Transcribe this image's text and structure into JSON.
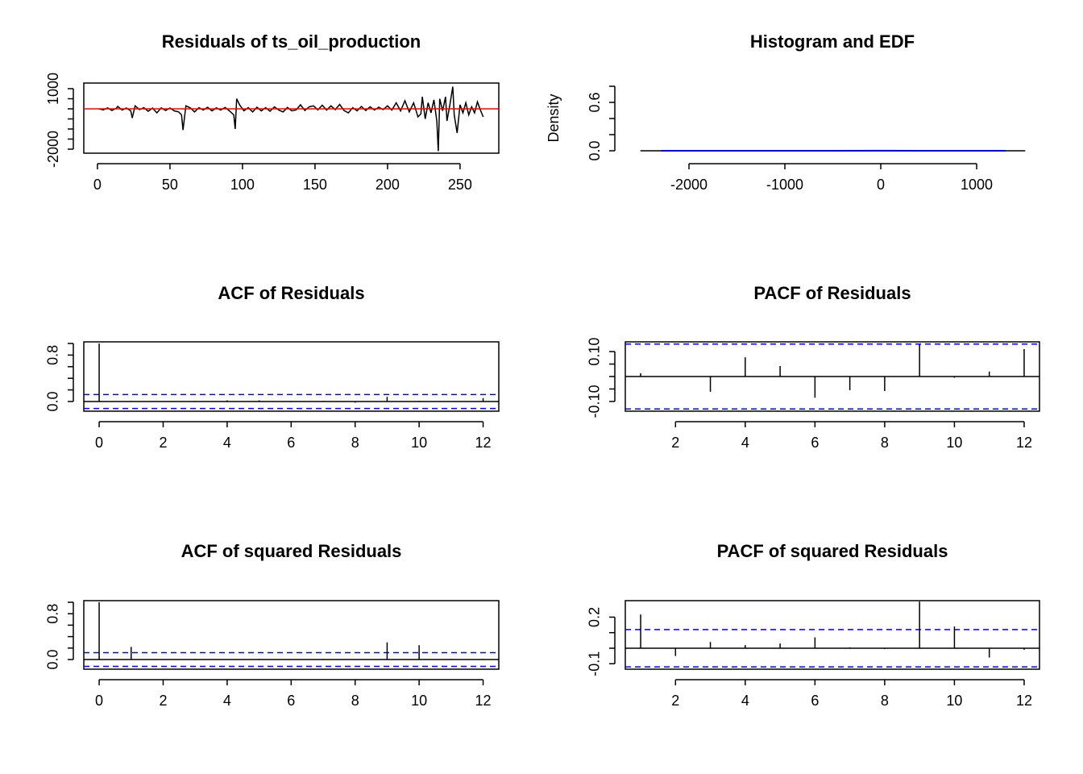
{
  "chart_data": [
    {
      "type": "line",
      "title": "Residuals of ts_oil_production",
      "box": true,
      "x": [
        1,
        4,
        7,
        10,
        13,
        14,
        17,
        20,
        23,
        24,
        26,
        29,
        32,
        35,
        38,
        41,
        44,
        47,
        50,
        53,
        56,
        58,
        59,
        61,
        64,
        67,
        70,
        73,
        76,
        79,
        82,
        85,
        88,
        91,
        94,
        95,
        96,
        98,
        101,
        104,
        107,
        110,
        113,
        116,
        119,
        122,
        125,
        128,
        131,
        134,
        137,
        140,
        143,
        146,
        149,
        152,
        155,
        158,
        161,
        164,
        167,
        170,
        173,
        176,
        179,
        182,
        185,
        188,
        191,
        194,
        197,
        200,
        203,
        206,
        209,
        212,
        215,
        218,
        221,
        223,
        224,
        226,
        228,
        230,
        232,
        234,
        235,
        236,
        238,
        240,
        241,
        243,
        245,
        246,
        248,
        250,
        252,
        254,
        256,
        258,
        260,
        262,
        264,
        266
      ],
      "values": [
        0,
        -50,
        50,
        -80,
        30,
        120,
        -60,
        40,
        -100,
        -450,
        150,
        -40,
        60,
        -120,
        40,
        -200,
        50,
        -80,
        40,
        -100,
        -150,
        -300,
        -1050,
        150,
        50,
        -150,
        60,
        -60,
        80,
        -100,
        50,
        -60,
        70,
        -100,
        -300,
        -1000,
        500,
        200,
        -100,
        60,
        -150,
        80,
        -100,
        60,
        -120,
        100,
        -60,
        -150,
        70,
        -100,
        -50,
        200,
        -80,
        100,
        150,
        -50,
        180,
        -60,
        150,
        -40,
        220,
        -80,
        -200,
        60,
        -100,
        120,
        -80,
        100,
        -60,
        80,
        -40,
        150,
        -60,
        300,
        -100,
        400,
        -150,
        300,
        -400,
        -250,
        600,
        -500,
        300,
        -200,
        450,
        -600,
        -2100,
        500,
        -100,
        600,
        -600,
        200,
        1100,
        -300,
        -1200,
        200,
        -200,
        300,
        -300,
        100,
        -200,
        350,
        -50,
        -400
      ],
      "color": "#000000",
      "hline": 0,
      "hline_color": "#ff0000",
      "xlim": [
        -9.4,
        276.7
      ],
      "xticks": [
        0,
        50,
        100,
        150,
        200,
        250
      ],
      "ylim": [
        -2200,
        1280
      ],
      "yticks": [
        -2000,
        1000
      ],
      "yminor": [
        -1500,
        -1000,
        -500,
        0,
        500
      ]
    },
    {
      "type": "histogram",
      "title": "Histogram and EDF",
      "ylabel": "Density",
      "box": false,
      "bins": [
        -2500,
        -2000,
        -1500,
        -1000,
        -500,
        0,
        500,
        1000,
        1500
      ],
      "values": [
        7.5e-06,
        0,
        1.5e-05,
        2.25e-05,
        0.0009,
        0.00101,
        3e-05,
        7.5e-06
      ],
      "color": "#000000",
      "density": {
        "x": [
          -2290,
          -1500,
          -1000,
          -500,
          0,
          500,
          1000,
          1300
        ],
        "values": [
          2e-06,
          1e-05,
          2e-05,
          0.0002,
          0.0012,
          0.0002,
          1e-05,
          2e-06
        ],
        "color": "#0000ff"
      },
      "xlim": [
        -2664,
        1655
      ],
      "xticks": [
        -2000,
        -1000,
        0,
        1000
      ],
      "ylim": [
        -0.03,
        0.84
      ],
      "yticks": [
        {
          "value": 0,
          "label": "0.0"
        },
        0.6
      ],
      "yminor": [
        0.2,
        0.4,
        0.8
      ]
    },
    {
      "type": "acf",
      "title": "ACF of Residuals",
      "box": true,
      "x": [
        0,
        1,
        2,
        3,
        4,
        5,
        6,
        7,
        8,
        9,
        10,
        11,
        12
      ],
      "values": [
        1,
        0.01,
        0,
        -0.01,
        0.02,
        0.02,
        -0.01,
        0.01,
        -0.02,
        0.08,
        0.01,
        0,
        0.06
      ],
      "color": "#000000",
      "hline": 0,
      "ci_upper": 0.12,
      "ci_lower": -0.12,
      "ci_color": "#0000ff",
      "xlim": [
        -0.48,
        12.49
      ],
      "xticks": [
        0,
        2,
        4,
        6,
        8,
        10,
        12
      ],
      "ylim": [
        -0.167,
        1.028
      ],
      "yticks": [
        {
          "value": 0,
          "label": "0.0"
        },
        0.8
      ],
      "yminor": [
        0.2,
        0.4,
        0.6,
        1
      ]
    },
    {
      "type": "acf",
      "title": "PACF of Residuals",
      "box": true,
      "x": [
        1,
        2,
        3,
        4,
        5,
        6,
        7,
        8,
        9,
        10,
        11,
        12
      ],
      "values": [
        0.013,
        0,
        -0.061,
        0.077,
        0.042,
        -0.085,
        -0.055,
        -0.058,
        0.13,
        -0.005,
        0.02,
        0.11
      ],
      "color": "#000000",
      "hline": 0,
      "ci_upper": 0.13,
      "ci_lower": -0.13,
      "ci_color": "#0000ff",
      "xlim": [
        0.56,
        12.44
      ],
      "xticks": [
        2,
        4,
        6,
        8,
        10,
        12
      ],
      "ylim": [
        -0.139,
        0.139
      ],
      "yticks": [
        {
          "value": -0.1,
          "label": "-0.10"
        },
        {
          "value": 0.1,
          "label": "0.10"
        }
      ],
      "yminor": [
        -0.05,
        0,
        0.05
      ]
    },
    {
      "type": "acf",
      "title": "ACF of squared Residuals",
      "box": true,
      "x": [
        0,
        1,
        2,
        3,
        4,
        5,
        6,
        7,
        8,
        9,
        10,
        11,
        12
      ],
      "values": [
        1,
        0.22,
        0,
        -0.01,
        0,
        0.01,
        0,
        -0.01,
        0,
        0.3,
        0.25,
        0.01,
        0.01
      ],
      "color": "#000000",
      "hline": 0,
      "ci_upper": 0.12,
      "ci_lower": -0.12,
      "ci_color": "#0000ff",
      "xlim": [
        -0.48,
        12.49
      ],
      "xticks": [
        0,
        2,
        4,
        6,
        8,
        10,
        12
      ],
      "ylim": [
        -0.169,
        1.028
      ],
      "yticks": [
        {
          "value": 0,
          "label": "0.0"
        },
        0.8
      ],
      "yminor": [
        0.2,
        0.4,
        0.6,
        1
      ]
    },
    {
      "type": "acf",
      "title": "PACF of squared Residuals",
      "box": true,
      "x": [
        1,
        2,
        3,
        4,
        5,
        6,
        7,
        8,
        9,
        10,
        11,
        12
      ],
      "values": [
        0.217,
        -0.05,
        0.04,
        0.02,
        0.03,
        0.07,
        0.005,
        -0.005,
        0.3,
        0.14,
        -0.06,
        -0.01
      ],
      "color": "#000000",
      "hline": 0,
      "ci_upper": 0.12,
      "ci_lower": -0.12,
      "ci_color": "#0000ff",
      "xlim": [
        0.56,
        12.44
      ],
      "xticks": [
        2,
        4,
        6,
        8,
        10,
        12
      ],
      "ylim": [
        -0.135,
        0.306
      ],
      "yticks": [
        -0.1,
        0.2
      ],
      "yminor": [
        0,
        0.1
      ]
    }
  ]
}
